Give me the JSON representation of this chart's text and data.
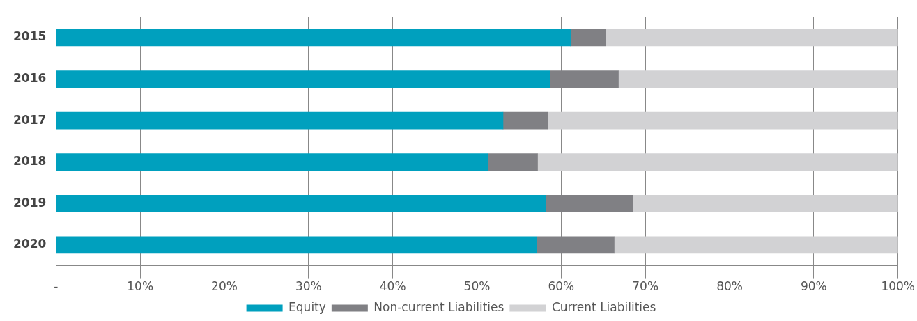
{
  "chart_data": {
    "type": "bar",
    "orientation": "horizontal",
    "stacked": true,
    "categories": [
      "2015",
      "2016",
      "2017",
      "2018",
      "2019",
      "2020"
    ],
    "series": [
      {
        "name": "Equity",
        "color": "#00a0be",
        "values": [
          61.1,
          58.7,
          53.1,
          51.3,
          58.2,
          57.1
        ]
      },
      {
        "name": "Non-current Liabilities",
        "color": "#808084",
        "values": [
          4.2,
          8.1,
          5.3,
          5.9,
          10.3,
          9.2
        ]
      },
      {
        "name": "Current Liabilities",
        "color": "#d2d2d4",
        "values": [
          34.7,
          33.2,
          41.6,
          42.8,
          31.5,
          33.7
        ]
      }
    ],
    "xlim": [
      0,
      100
    ],
    "xticks": [
      {
        "value": 0,
        "label": "-"
      },
      {
        "value": 10,
        "label": "10%"
      },
      {
        "value": 20,
        "label": "20%"
      },
      {
        "value": 30,
        "label": "30%"
      },
      {
        "value": 40,
        "label": "40%"
      },
      {
        "value": 50,
        "label": "50%"
      },
      {
        "value": 60,
        "label": "60%"
      },
      {
        "value": 70,
        "label": "70%"
      },
      {
        "value": 80,
        "label": "80%"
      },
      {
        "value": 90,
        "label": "90%"
      },
      {
        "value": 100,
        "label": "100%"
      }
    ],
    "grid": "x",
    "legend": "bottom"
  }
}
